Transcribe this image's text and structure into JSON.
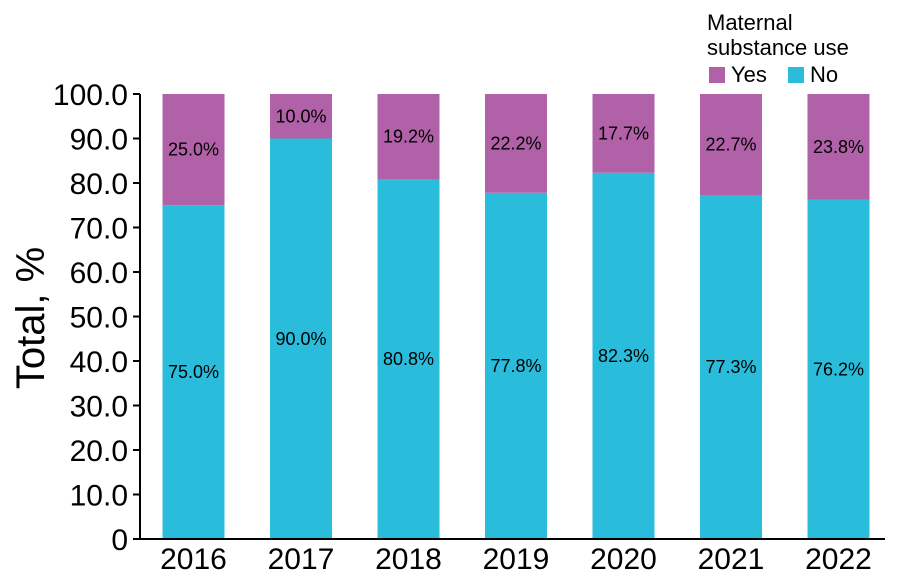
{
  "chart_data": {
    "type": "bar",
    "stacked": true,
    "categories": [
      "2016",
      "2017",
      "2018",
      "2019",
      "2020",
      "2021",
      "2022"
    ],
    "series": [
      {
        "name": "No",
        "color": "#29bcdb",
        "values": [
          75.0,
          90.0,
          80.8,
          77.8,
          82.3,
          77.3,
          76.2
        ],
        "labels": [
          "75.0%",
          "90.0%",
          "80.8%",
          "77.8%",
          "82.3%",
          "77.3%",
          "76.2%"
        ]
      },
      {
        "name": "Yes",
        "color": "#b161a8",
        "values": [
          25.0,
          10.0,
          19.2,
          22.2,
          17.7,
          22.7,
          23.8
        ],
        "labels": [
          "25.0%",
          "10.0%",
          "19.2%",
          "22.2%",
          "17.7%",
          "22.7%",
          "23.8%"
        ]
      }
    ],
    "ylabel": "Total, %",
    "xlabel": "",
    "ylim": [
      0,
      100
    ],
    "yticks": [
      "0",
      "10.0",
      "20.0",
      "30.0",
      "40.0",
      "50.0",
      "60.0",
      "70.0",
      "80.0",
      "90.0",
      "100.0"
    ],
    "grid": false,
    "legend": {
      "title_line1": "Maternal",
      "title_line2": "substance use",
      "placement": "top-right",
      "items": [
        {
          "label": "Yes",
          "color": "#b161a8"
        },
        {
          "label": "No",
          "color": "#29bcdb"
        }
      ]
    }
  }
}
